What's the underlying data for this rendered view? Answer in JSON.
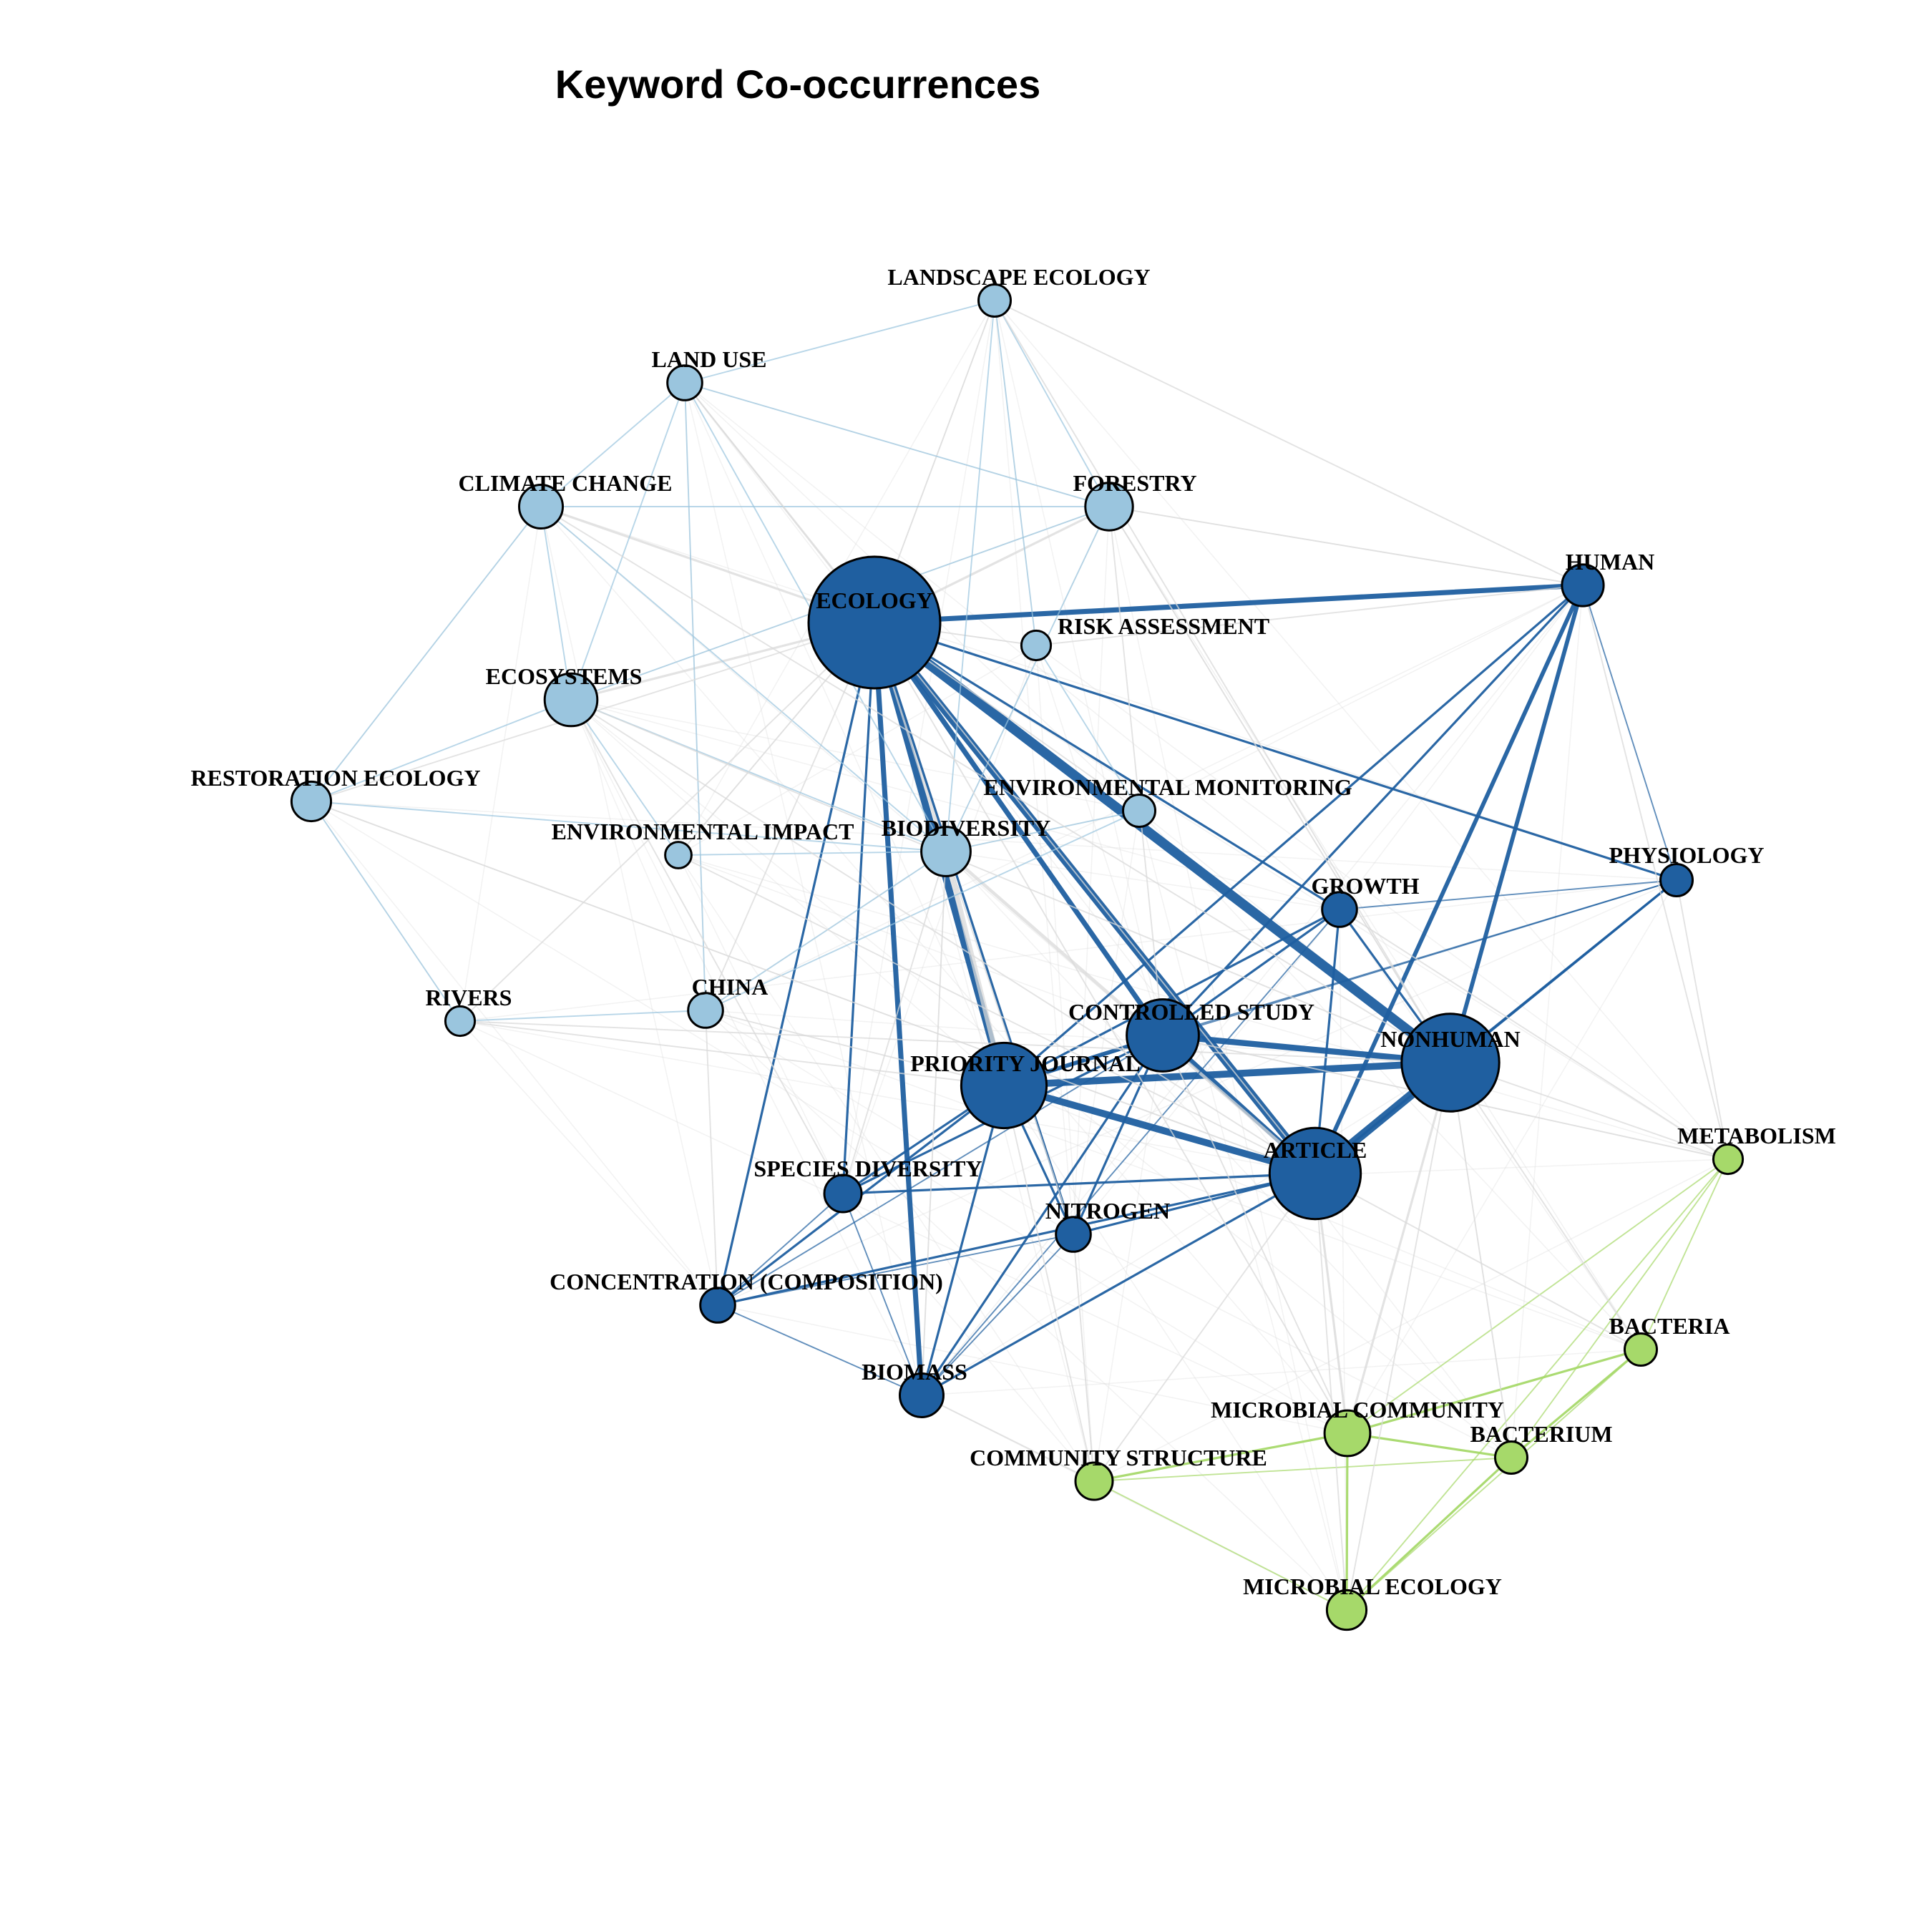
{
  "title": "Keyword Co-occurrences",
  "colors": {
    "cluster_dark_blue": "#1f5fa0",
    "cluster_light_blue": "#9ac5de",
    "cluster_green": "#a6d96a",
    "background_edge": "#d9d9d9"
  },
  "nodes": [
    {
      "id": "ecology",
      "label": "ECOLOGY",
      "cluster": "dark_blue",
      "weight": 100
    },
    {
      "id": "nonhuman",
      "label": "NONHUMAN",
      "cluster": "dark_blue",
      "weight": 55
    },
    {
      "id": "article",
      "label": "ARTICLE",
      "cluster": "dark_blue",
      "weight": 48
    },
    {
      "id": "priority_journal",
      "label": "PRIORITY JOURNAL",
      "cluster": "dark_blue",
      "weight": 42
    },
    {
      "id": "controlled_study",
      "label": "CONTROLLED STUDY",
      "cluster": "dark_blue",
      "weight": 30
    },
    {
      "id": "human",
      "label": "HUMAN",
      "cluster": "dark_blue",
      "weight": 10
    },
    {
      "id": "physiology",
      "label": "PHYSIOLOGY",
      "cluster": "dark_blue",
      "weight": 6
    },
    {
      "id": "growth",
      "label": "GROWTH",
      "cluster": "dark_blue",
      "weight": 7
    },
    {
      "id": "species_diversity",
      "label": "SPECIES DIVERSITY",
      "cluster": "dark_blue",
      "weight": 8
    },
    {
      "id": "nitrogen",
      "label": "NITROGEN",
      "cluster": "dark_blue",
      "weight": 7
    },
    {
      "id": "concentration",
      "label": "CONCENTRATION (COMPOSITION)",
      "cluster": "dark_blue",
      "weight": 7
    },
    {
      "id": "biomass",
      "label": "BIOMASS",
      "cluster": "dark_blue",
      "weight": 11
    },
    {
      "id": "landscape_ecology",
      "label": "LANDSCAPE ECOLOGY",
      "cluster": "light_blue",
      "weight": 6
    },
    {
      "id": "land_use",
      "label": "LAND USE",
      "cluster": "light_blue",
      "weight": 7
    },
    {
      "id": "climate_change",
      "label": "CLIMATE CHANGE",
      "cluster": "light_blue",
      "weight": 11
    },
    {
      "id": "forestry",
      "label": "FORESTRY",
      "cluster": "light_blue",
      "weight": 13
    },
    {
      "id": "risk_assessment",
      "label": "RISK ASSESSMENT",
      "cluster": "light_blue",
      "weight": 5
    },
    {
      "id": "ecosystems",
      "label": "ECOSYSTEMS",
      "cluster": "light_blue",
      "weight": 16
    },
    {
      "id": "restoration_ecology",
      "label": "RESTORATION ECOLOGY",
      "cluster": "light_blue",
      "weight": 9
    },
    {
      "id": "environmental_monitoring",
      "label": "ENVIRONMENTAL MONITORING",
      "cluster": "light_blue",
      "weight": 6
    },
    {
      "id": "environmental_impact",
      "label": "ENVIRONMENTAL IMPACT",
      "cluster": "light_blue",
      "weight": 4
    },
    {
      "id": "biodiversity",
      "label": "BIODIVERSITY",
      "cluster": "light_blue",
      "weight": 14
    },
    {
      "id": "rivers",
      "label": "RIVERS",
      "cluster": "light_blue",
      "weight": 5
    },
    {
      "id": "china",
      "label": "CHINA",
      "cluster": "light_blue",
      "weight": 7
    },
    {
      "id": "metabolism",
      "label": "METABOLISM",
      "cluster": "green",
      "weight": 5
    },
    {
      "id": "bacteria",
      "label": "BACTERIA",
      "cluster": "green",
      "weight": 6
    },
    {
      "id": "microbial_community",
      "label": "MICROBIAL COMMUNITY",
      "cluster": "green",
      "weight": 12
    },
    {
      "id": "bacterium",
      "label": "BACTERIUM",
      "cluster": "green",
      "weight": 6
    },
    {
      "id": "community_structure",
      "label": "COMMUNITY STRUCTURE",
      "cluster": "green",
      "weight": 8
    },
    {
      "id": "microbial_ecology",
      "label": "MICROBIAL ECOLOGY",
      "cluster": "green",
      "weight": 9
    }
  ],
  "edges": [
    {
      "source": "ecology",
      "target": "nonhuman",
      "strength": 10
    },
    {
      "source": "ecology",
      "target": "article",
      "strength": 8
    },
    {
      "source": "ecology",
      "target": "priority_journal",
      "strength": 7
    },
    {
      "source": "ecology",
      "target": "controlled_study",
      "strength": 5
    },
    {
      "source": "ecology",
      "target": "human",
      "strength": 5
    },
    {
      "source": "ecology",
      "target": "biomass",
      "strength": 5
    },
    {
      "source": "ecology",
      "target": "biodiversity",
      "strength": 4
    },
    {
      "source": "ecology",
      "target": "species_diversity",
      "strength": 2
    },
    {
      "source": "ecology",
      "target": "concentration",
      "strength": 2
    },
    {
      "source": "ecology",
      "target": "physiology",
      "strength": 2
    },
    {
      "source": "ecology",
      "target": "growth",
      "strength": 2
    },
    {
      "source": "ecology",
      "target": "nitrogen",
      "strength": 2
    },
    {
      "source": "nonhuman",
      "target": "article",
      "strength": 9
    },
    {
      "source": "nonhuman",
      "target": "priority_journal",
      "strength": 7
    },
    {
      "source": "nonhuman",
      "target": "controlled_study",
      "strength": 6
    },
    {
      "source": "nonhuman",
      "target": "human",
      "strength": 4
    },
    {
      "source": "nonhuman",
      "target": "growth",
      "strength": 2
    },
    {
      "source": "nonhuman",
      "target": "physiology",
      "strength": 2
    },
    {
      "source": "article",
      "target": "priority_journal",
      "strength": 7
    },
    {
      "source": "article",
      "target": "controlled_study",
      "strength": 5
    },
    {
      "source": "article",
      "target": "human",
      "strength": 4
    },
    {
      "source": "article",
      "target": "biodiversity",
      "strength": 3
    },
    {
      "source": "article",
      "target": "species_diversity",
      "strength": 2
    },
    {
      "source": "article",
      "target": "nitrogen",
      "strength": 2
    },
    {
      "source": "article",
      "target": "concentration",
      "strength": 2
    },
    {
      "source": "article",
      "target": "biomass",
      "strength": 2
    },
    {
      "source": "article",
      "target": "growth",
      "strength": 2
    },
    {
      "source": "article",
      "target": "physiology",
      "strength": 2
    },
    {
      "source": "priority_journal",
      "target": "controlled_study",
      "strength": 4
    },
    {
      "source": "priority_journal",
      "target": "biodiversity",
      "strength": 5
    },
    {
      "source": "priority_journal",
      "target": "species_diversity",
      "strength": 2
    },
    {
      "source": "priority_journal",
      "target": "biomass",
      "strength": 2
    },
    {
      "source": "priority_journal",
      "target": "concentration",
      "strength": 2
    },
    {
      "source": "priority_journal",
      "target": "nitrogen",
      "strength": 2
    },
    {
      "source": "priority_journal",
      "target": "growth",
      "strength": 2
    },
    {
      "source": "priority_journal",
      "target": "physiology",
      "strength": 1
    },
    {
      "source": "priority_journal",
      "target": "human",
      "strength": 2
    },
    {
      "source": "controlled_study",
      "target": "human",
      "strength": 2
    },
    {
      "source": "controlled_study",
      "target": "growth",
      "strength": 2
    },
    {
      "source": "controlled_study",
      "target": "nitrogen",
      "strength": 2
    },
    {
      "source": "controlled_study",
      "target": "biomass",
      "strength": 2
    },
    {
      "source": "controlled_study",
      "target": "species_diversity",
      "strength": 2
    },
    {
      "source": "controlled_study",
      "target": "concentration",
      "strength": 1
    },
    {
      "source": "controlled_study",
      "target": "physiology",
      "strength": 1
    },
    {
      "source": "biomass",
      "target": "species_diversity",
      "strength": 1
    },
    {
      "source": "biomass",
      "target": "nitrogen",
      "strength": 1
    },
    {
      "source": "biomass",
      "target": "concentration",
      "strength": 1
    },
    {
      "source": "biomass",
      "target": "growth",
      "strength": 1
    },
    {
      "source": "nitrogen",
      "target": "concentration",
      "strength": 1
    },
    {
      "source": "species_diversity",
      "target": "concentration",
      "strength": 1
    },
    {
      "source": "growth",
      "target": "physiology",
      "strength": 1
    },
    {
      "source": "human",
      "target": "physiology",
      "strength": 1
    },
    {
      "source": "ecology",
      "target": "forestry",
      "strength": 2
    },
    {
      "source": "ecology",
      "target": "ecosystems",
      "strength": 2
    },
    {
      "source": "ecology",
      "target": "climate_change",
      "strength": 2
    },
    {
      "source": "ecology",
      "target": "land_use",
      "strength": 1
    },
    {
      "source": "ecology",
      "target": "landscape_ecology",
      "strength": 1
    },
    {
      "source": "ecology",
      "target": "risk_assessment",
      "strength": 1
    },
    {
      "source": "ecology",
      "target": "environmental_monitoring",
      "strength": 1
    },
    {
      "source": "ecology",
      "target": "china",
      "strength": 1
    },
    {
      "source": "climate_change",
      "target": "forestry",
      "strength": 1
    },
    {
      "source": "climate_change",
      "target": "ecosystems",
      "strength": 1
    },
    {
      "source": "climate_change",
      "target": "land_use",
      "strength": 1
    },
    {
      "source": "climate_change",
      "target": "restoration_ecology",
      "strength": 1
    },
    {
      "source": "climate_change",
      "target": "biodiversity",
      "strength": 1
    },
    {
      "source": "land_use",
      "target": "forestry",
      "strength": 1
    },
    {
      "source": "land_use",
      "target": "ecosystems",
      "strength": 1
    },
    {
      "source": "land_use",
      "target": "landscape_ecology",
      "strength": 1
    },
    {
      "source": "land_use",
      "target": "biodiversity",
      "strength": 1
    },
    {
      "source": "land_use",
      "target": "china",
      "strength": 1
    },
    {
      "source": "landscape_ecology",
      "target": "forestry",
      "strength": 1
    },
    {
      "source": "landscape_ecology",
      "target": "biodiversity",
      "strength": 1
    },
    {
      "source": "landscape_ecology",
      "target": "risk_assessment",
      "strength": 1
    },
    {
      "source": "forestry",
      "target": "ecosystems",
      "strength": 1
    },
    {
      "source": "forestry",
      "target": "biodiversity",
      "strength": 1
    },
    {
      "source": "ecosystems",
      "target": "restoration_ecology",
      "strength": 1
    },
    {
      "source": "ecosystems",
      "target": "biodiversity",
      "strength": 1
    },
    {
      "source": "ecosystems",
      "target": "environmental_impact",
      "strength": 1
    },
    {
      "source": "restoration_ecology",
      "target": "biodiversity",
      "strength": 1
    },
    {
      "source": "restoration_ecology",
      "target": "rivers",
      "strength": 1
    },
    {
      "source": "biodiversity",
      "target": "environmental_monitoring",
      "strength": 1
    },
    {
      "source": "biodiversity",
      "target": "environmental_impact",
      "strength": 1
    },
    {
      "source": "biodiversity",
      "target": "china",
      "strength": 1
    },
    {
      "source": "risk_assessment",
      "target": "environmental_monitoring",
      "strength": 1
    },
    {
      "source": "microbial_community",
      "target": "bacterium",
      "strength": 2
    },
    {
      "source": "microbial_community",
      "target": "bacteria",
      "strength": 2
    },
    {
      "source": "microbial_community",
      "target": "microbial_ecology",
      "strength": 2
    },
    {
      "source": "microbial_community",
      "target": "community_structure",
      "strength": 2
    },
    {
      "source": "microbial_community",
      "target": "metabolism",
      "strength": 1
    },
    {
      "source": "bacterium",
      "target": "bacteria",
      "strength": 2
    },
    {
      "source": "bacterium",
      "target": "microbial_ecology",
      "strength": 2
    },
    {
      "source": "bacterium",
      "target": "community_structure",
      "strength": 1
    },
    {
      "source": "bacterium",
      "target": "metabolism",
      "strength": 1
    },
    {
      "source": "bacteria",
      "target": "microbial_ecology",
      "strength": 1
    },
    {
      "source": "bacteria",
      "target": "metabolism",
      "strength": 1
    },
    {
      "source": "community_structure",
      "target": "microbial_ecology",
      "strength": 1
    },
    {
      "source": "metabolism",
      "target": "microbial_ecology",
      "strength": 1
    },
    {
      "source": "nonhuman",
      "target": "microbial_community",
      "strength": 2
    },
    {
      "source": "nonhuman",
      "target": "bacterium",
      "strength": 1
    },
    {
      "source": "nonhuman",
      "target": "metabolism",
      "strength": 1
    },
    {
      "source": "nonhuman",
      "target": "microbial_ecology",
      "strength": 1
    },
    {
      "source": "nonhuman",
      "target": "bacteria",
      "strength": 1
    },
    {
      "source": "article",
      "target": "microbial_community",
      "strength": 2
    },
    {
      "source": "article",
      "target": "microbial_ecology",
      "strength": 1
    },
    {
      "source": "article",
      "target": "bacteria",
      "strength": 1
    },
    {
      "source": "article",
      "target": "community_structure",
      "strength": 1
    },
    {
      "source": "ecology",
      "target": "microbial_community",
      "strength": 1
    },
    {
      "source": "ecology",
      "target": "rivers",
      "strength": 1
    },
    {
      "source": "ecology",
      "target": "restoration_ecology",
      "strength": 1
    },
    {
      "source": "ecology",
      "target": "environmental_impact",
      "strength": 1
    },
    {
      "source": "priority_journal",
      "target": "community_structure",
      "strength": 1
    },
    {
      "source": "priority_journal",
      "target": "china",
      "strength": 1
    },
    {
      "source": "priority_journal",
      "target": "rivers",
      "strength": 1
    },
    {
      "source": "controlled_study",
      "target": "metabolism",
      "strength": 1
    },
    {
      "source": "controlled_study",
      "target": "microbial_community",
      "strength": 1
    },
    {
      "source": "human",
      "target": "metabolism",
      "strength": 1
    },
    {
      "source": "human",
      "target": "forestry",
      "strength": 1
    },
    {
      "source": "human",
      "target": "risk_assessment",
      "strength": 1
    },
    {
      "source": "physiology",
      "target": "metabolism",
      "strength": 1
    },
    {
      "source": "biomass",
      "target": "community_structure",
      "strength": 1
    },
    {
      "source": "biomass",
      "target": "biodiversity",
      "strength": 1
    },
    {
      "source": "nitrogen",
      "target": "community_structure",
      "strength": 1
    },
    {
      "source": "nitrogen",
      "target": "biodiversity",
      "strength": 1
    },
    {
      "source": "species_diversity",
      "target": "biodiversity",
      "strength": 1
    },
    {
      "source": "species_diversity",
      "target": "ecosystems",
      "strength": 1
    },
    {
      "source": "concentration",
      "target": "china",
      "strength": 1
    },
    {
      "source": "growth",
      "target": "metabolism",
      "strength": 1
    },
    {
      "source": "environmental_monitoring",
      "target": "china",
      "strength": 1
    },
    {
      "source": "rivers",
      "target": "china",
      "strength": 1
    },
    {
      "source": "forestry",
      "target": "controlled_study",
      "strength": 1
    },
    {
      "source": "forestry",
      "target": "nonhuman",
      "strength": 1
    },
    {
      "source": "landscape_ecology",
      "target": "nonhuman",
      "strength": 1
    },
    {
      "source": "landscape_ecology",
      "target": "human",
      "strength": 1
    },
    {
      "source": "climate_change",
      "target": "nonhuman",
      "strength": 1
    },
    {
      "source": "ecosystems",
      "target": "nonhuman",
      "strength": 1
    },
    {
      "source": "ecosystems",
      "target": "article",
      "strength": 1
    },
    {
      "source": "land_use",
      "target": "article",
      "strength": 1
    },
    {
      "source": "restoration_ecology",
      "target": "article",
      "strength": 1
    },
    {
      "source": "environmental_impact",
      "target": "article",
      "strength": 1
    },
    {
      "source": "rivers",
      "target": "nonhuman",
      "strength": 1
    }
  ]
}
